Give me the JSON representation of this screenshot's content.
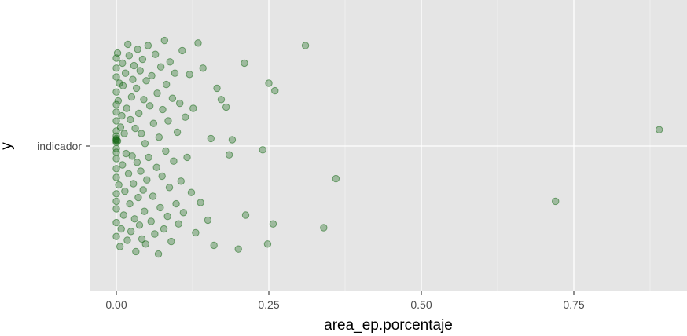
{
  "chart_data": {
    "type": "scatter",
    "subtype": "jitter strip plot",
    "title": "",
    "xlabel": "area_ep.porcentaje",
    "ylabel": "y",
    "x_ticks": [
      0.0,
      0.25,
      0.5,
      0.75
    ],
    "x_tick_labels": [
      "0.00",
      "0.25",
      "0.50",
      "0.75"
    ],
    "xlim": [
      -0.04,
      0.94
    ],
    "categories": [
      "indicador"
    ],
    "grid": true,
    "background": "#e5e5e5",
    "point_color": "#1a6b1a",
    "point_alpha": 0.35,
    "points": [
      {
        "x": 0.0,
        "y": 0.55
      },
      {
        "x": 0.0,
        "y": 0.62
      },
      {
        "x": 0.0,
        "y": 0.7
      },
      {
        "x": 0.0,
        "y": 0.33
      },
      {
        "x": 0.0,
        "y": 0.2
      },
      {
        "x": 0.0,
        "y": 0.05
      },
      {
        "x": 0.0,
        "y": -0.02
      },
      {
        "x": 0.0,
        "y": -0.1
      },
      {
        "x": 0.0,
        "y": -0.25
      },
      {
        "x": 0.0,
        "y": -0.38
      },
      {
        "x": 0.0,
        "y": -0.5
      },
      {
        "x": 0.0,
        "y": -0.61
      },
      {
        "x": 0.0,
        "y": -0.72
      },
      {
        "x": 0.0,
        "y": 0.43
      },
      {
        "x": 0.0,
        "y": 0.12
      },
      {
        "x": 0.0,
        "y": -0.05
      },
      {
        "x": 0.0,
        "y": 0.08
      },
      {
        "x": 0.0,
        "y": -0.44
      },
      {
        "x": 0.0,
        "y": 0.27
      },
      {
        "x": 0.0,
        "y": -0.18
      },
      {
        "x": 0.0,
        "y": 0.05
      },
      {
        "x": 0.0,
        "y": 0.04
      },
      {
        "x": 0.0,
        "y": 0.06
      },
      {
        "x": 0.0,
        "y": 0.03
      },
      {
        "x": 0.002,
        "y": 0.04
      },
      {
        "x": 0.002,
        "y": 0.74
      },
      {
        "x": 0.003,
        "y": 0.36
      },
      {
        "x": 0.004,
        "y": -0.31
      },
      {
        "x": 0.005,
        "y": 0.5
      },
      {
        "x": 0.006,
        "y": -0.8
      },
      {
        "x": 0.007,
        "y": 0.15
      },
      {
        "x": 0.008,
        "y": -0.66
      },
      {
        "x": 0.009,
        "y": 0.24
      },
      {
        "x": 0.01,
        "y": 0.66
      },
      {
        "x": 0.01,
        "y": -0.15
      },
      {
        "x": 0.011,
        "y": 0.48
      },
      {
        "x": 0.012,
        "y": -0.55
      },
      {
        "x": 0.013,
        "y": 0.1
      },
      {
        "x": 0.014,
        "y": -0.36
      },
      {
        "x": 0.015,
        "y": 0.58
      },
      {
        "x": 0.016,
        "y": -0.06
      },
      {
        "x": 0.017,
        "y": 0.3
      },
      {
        "x": 0.018,
        "y": -0.75
      },
      {
        "x": 0.019,
        "y": 0.81
      },
      {
        "x": 0.02,
        "y": -0.22
      },
      {
        "x": 0.021,
        "y": 0.72
      },
      {
        "x": 0.022,
        "y": -0.46
      },
      {
        "x": 0.023,
        "y": 0.21
      },
      {
        "x": 0.024,
        "y": -0.68
      },
      {
        "x": 0.025,
        "y": 0.39
      },
      {
        "x": 0.026,
        "y": -0.08
      },
      {
        "x": 0.027,
        "y": 0.53
      },
      {
        "x": 0.028,
        "y": -0.3
      },
      {
        "x": 0.029,
        "y": 0.64
      },
      {
        "x": 0.03,
        "y": -0.58
      },
      {
        "x": 0.031,
        "y": 0.14
      },
      {
        "x": 0.032,
        "y": -0.84
      },
      {
        "x": 0.033,
        "y": 0.46
      },
      {
        "x": 0.034,
        "y": -0.13
      },
      {
        "x": 0.035,
        "y": 0.77
      },
      {
        "x": 0.036,
        "y": -0.41
      },
      {
        "x": 0.037,
        "y": 0.26
      },
      {
        "x": 0.038,
        "y": -0.63
      },
      {
        "x": 0.039,
        "y": 0.6
      },
      {
        "x": 0.04,
        "y": -0.2
      },
      {
        "x": 0.041,
        "y": 0.1
      },
      {
        "x": 0.042,
        "y": -0.74
      },
      {
        "x": 0.043,
        "y": 0.69
      },
      {
        "x": 0.044,
        "y": -0.35
      },
      {
        "x": 0.045,
        "y": 0.37
      },
      {
        "x": 0.046,
        "y": -0.52
      },
      {
        "x": 0.047,
        "y": 0.02
      },
      {
        "x": 0.048,
        "y": -0.78
      },
      {
        "x": 0.049,
        "y": 0.52
      },
      {
        "x": 0.05,
        "y": -0.27
      },
      {
        "x": 0.052,
        "y": 0.8
      },
      {
        "x": 0.053,
        "y": -0.09
      },
      {
        "x": 0.055,
        "y": 0.32
      },
      {
        "x": 0.057,
        "y": -0.6
      },
      {
        "x": 0.058,
        "y": 0.56
      },
      {
        "x": 0.06,
        "y": -0.4
      },
      {
        "x": 0.061,
        "y": 0.18
      },
      {
        "x": 0.063,
        "y": -0.7
      },
      {
        "x": 0.064,
        "y": 0.73
      },
      {
        "x": 0.066,
        "y": -0.17
      },
      {
        "x": 0.067,
        "y": 0.42
      },
      {
        "x": 0.069,
        "y": -0.86
      },
      {
        "x": 0.07,
        "y": 0.07
      },
      {
        "x": 0.072,
        "y": -0.49
      },
      {
        "x": 0.073,
        "y": 0.63
      },
      {
        "x": 0.075,
        "y": -0.24
      },
      {
        "x": 0.076,
        "y": 0.29
      },
      {
        "x": 0.078,
        "y": -0.66
      },
      {
        "x": 0.079,
        "y": 0.84
      },
      {
        "x": 0.081,
        "y": -0.04
      },
      {
        "x": 0.082,
        "y": 0.49
      },
      {
        "x": 0.084,
        "y": -0.56
      },
      {
        "x": 0.085,
        "y": 0.2
      },
      {
        "x": 0.087,
        "y": -0.33
      },
      {
        "x": 0.088,
        "y": 0.67
      },
      {
        "x": 0.09,
        "y": -0.76
      },
      {
        "x": 0.092,
        "y": 0.38
      },
      {
        "x": 0.094,
        "y": -0.12
      },
      {
        "x": 0.096,
        "y": 0.58
      },
      {
        "x": 0.098,
        "y": -0.46
      },
      {
        "x": 0.1,
        "y": 0.11
      },
      {
        "x": 0.102,
        "y": -0.62
      },
      {
        "x": 0.104,
        "y": 0.34
      },
      {
        "x": 0.106,
        "y": -0.28
      },
      {
        "x": 0.108,
        "y": 0.76
      },
      {
        "x": 0.11,
        "y": -0.53
      },
      {
        "x": 0.113,
        "y": 0.23
      },
      {
        "x": 0.116,
        "y": -0.09
      },
      {
        "x": 0.12,
        "y": 0.57
      },
      {
        "x": 0.123,
        "y": -0.37
      },
      {
        "x": 0.126,
        "y": 0.3
      },
      {
        "x": 0.13,
        "y": -0.69
      },
      {
        "x": 0.134,
        "y": 0.82
      },
      {
        "x": 0.138,
        "y": -0.45
      },
      {
        "x": 0.142,
        "y": 0.62
      },
      {
        "x": 0.15,
        "y": -0.59
      },
      {
        "x": 0.155,
        "y": 0.06
      },
      {
        "x": 0.16,
        "y": -0.79
      },
      {
        "x": 0.165,
        "y": 0.46
      },
      {
        "x": 0.172,
        "y": 0.37
      },
      {
        "x": 0.18,
        "y": 0.31
      },
      {
        "x": 0.185,
        "y": -0.07
      },
      {
        "x": 0.19,
        "y": 0.05
      },
      {
        "x": 0.2,
        "y": -0.82
      },
      {
        "x": 0.21,
        "y": 0.66
      },
      {
        "x": 0.212,
        "y": -0.55
      },
      {
        "x": 0.24,
        "y": -0.03
      },
      {
        "x": 0.248,
        "y": -0.78
      },
      {
        "x": 0.25,
        "y": 0.5
      },
      {
        "x": 0.257,
        "y": -0.62
      },
      {
        "x": 0.26,
        "y": 0.44
      },
      {
        "x": 0.31,
        "y": 0.8
      },
      {
        "x": 0.34,
        "y": -0.65
      },
      {
        "x": 0.36,
        "y": -0.26
      },
      {
        "x": 0.72,
        "y": -0.44
      },
      {
        "x": 0.89,
        "y": 0.13
      }
    ]
  }
}
